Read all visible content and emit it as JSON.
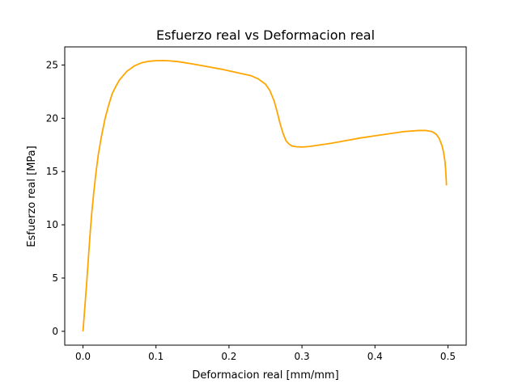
{
  "chart_data": {
    "type": "line",
    "title": "Esfuerzo real vs Deformacion real",
    "xlabel": "Deformacion real [mm/mm]",
    "ylabel": "Esfuerzo real [MPa]",
    "xlim": [
      -0.025,
      0.525
    ],
    "ylim": [
      -1.3,
      26.7
    ],
    "xticks": [
      0.0,
      0.1,
      0.2,
      0.3,
      0.4,
      0.5
    ],
    "xtick_labels": [
      "0.0",
      "0.1",
      "0.2",
      "0.3",
      "0.4",
      "0.5"
    ],
    "yticks": [
      0,
      5,
      10,
      15,
      20,
      25
    ],
    "ytick_labels": [
      "0",
      "5",
      "10",
      "15",
      "20",
      "25"
    ],
    "grid": false,
    "line_color": "#ffa500",
    "series": [
      {
        "x": [
          0.0,
          0.002,
          0.004,
          0.006,
          0.008,
          0.01,
          0.012,
          0.015,
          0.018,
          0.021,
          0.025,
          0.03,
          0.035,
          0.04,
          0.045,
          0.05,
          0.06,
          0.07,
          0.08,
          0.09,
          0.1,
          0.11,
          0.12,
          0.13,
          0.15,
          0.17,
          0.19,
          0.21,
          0.23,
          0.24,
          0.25,
          0.256,
          0.262,
          0.266,
          0.27,
          0.274,
          0.278,
          0.282,
          0.286,
          0.292,
          0.3,
          0.31,
          0.32,
          0.34,
          0.36,
          0.38,
          0.4,
          0.42,
          0.44,
          0.46,
          0.47,
          0.478,
          0.484,
          0.488,
          0.492,
          0.494,
          0.496,
          0.497,
          0.498
        ],
        "y": [
          0.0,
          1.8,
          3.6,
          5.5,
          7.5,
          9.4,
          11.1,
          13.2,
          15.0,
          16.6,
          18.2,
          19.9,
          21.2,
          22.3,
          23.0,
          23.6,
          24.4,
          24.9,
          25.2,
          25.35,
          25.4,
          25.42,
          25.38,
          25.32,
          25.1,
          24.85,
          24.6,
          24.3,
          24.0,
          23.7,
          23.2,
          22.6,
          21.6,
          20.6,
          19.5,
          18.6,
          17.9,
          17.6,
          17.4,
          17.33,
          17.3,
          17.35,
          17.45,
          17.65,
          17.9,
          18.15,
          18.35,
          18.55,
          18.75,
          18.85,
          18.85,
          18.75,
          18.5,
          18.1,
          17.4,
          16.8,
          15.9,
          15.0,
          13.7
        ]
      }
    ]
  }
}
